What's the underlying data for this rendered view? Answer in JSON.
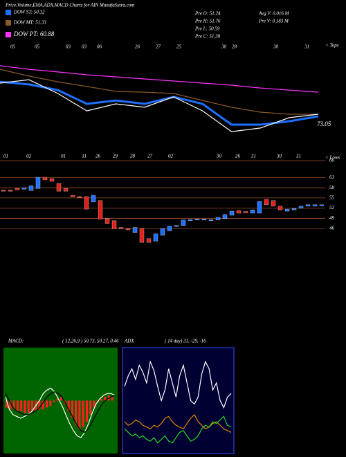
{
  "header": {
    "title": "Price,Volume,EMA,ADX,MACD Charts for AIN  MunafaSutra.com",
    "legend": [
      {
        "label": "DOW ST: 50.32",
        "color": "#1e6fff"
      },
      {
        "label": "DOW MT: 51.33",
        "color": "#8b5a2b"
      },
      {
        "label": "DOW PT: 60.88",
        "color": "#ff33ff"
      }
    ],
    "stats": [
      "Pre  O: 51.24",
      "Pre  H: 51.76",
      "Pre  L: 50.59",
      "Pre  C: 51.38"
    ],
    "volume": [
      "Avg V: 0.016  M",
      "Pre  V: 0.183 M"
    ],
    "tops": "< Tops",
    "lows": "< Lows",
    "macd_label": "MACD:",
    "macd_params": "( 12,26,9 ) 50.73, 50.27, 0.46",
    "adx_label": "ADX",
    "adx_params": "( 14  day) 31, -29, -16"
  },
  "chart_data": [
    {
      "type": "line",
      "ylim": [
        60,
        100
      ],
      "annotation": "73.05",
      "xlabels": [
        "05",
        "05",
        "03",
        "03",
        "06",
        "26",
        "27",
        "25",
        "30",
        "28",
        "30",
        "31"
      ],
      "series": [
        {
          "color": "#ff33ff",
          "values": [
            90.7,
            89.3,
            88.3,
            87.2,
            86.4,
            85.6,
            84.8,
            84.0,
            83.2,
            82.1,
            81.3,
            80.5
          ]
        },
        {
          "color": "#8b5a2b",
          "values": [
            89.3,
            86.7,
            84.5,
            82.7,
            80.8,
            80.5,
            80.0,
            77.3,
            74.7,
            72.8,
            72.0,
            72.0
          ]
        },
        {
          "color": "#1e6fff",
          "values": [
            84.5,
            83.5,
            81.3,
            76.0,
            77.3,
            76.0,
            78.7,
            76.0,
            68.0,
            68.0,
            69.3,
            71.2
          ]
        },
        {
          "color": "#ffffff",
          "values": [
            84.0,
            85.3,
            80.0,
            73.3,
            76.0,
            74.7,
            78.7,
            73.3,
            65.3,
            66.7,
            70.7,
            72.0
          ]
        }
      ]
    },
    {
      "type": "candlestick",
      "ylim": [
        40,
        66
      ],
      "yticks": [
        66,
        61,
        58,
        55,
        52,
        49,
        46
      ],
      "xlabels": [
        "01",
        "02",
        "01",
        "31",
        "26",
        "29",
        "28",
        "27",
        "02",
        "30",
        "26",
        "31",
        "30",
        "31"
      ],
      "up_color": "#1e6fff",
      "down_color": "#e0201b",
      "open": [
        57.4,
        57.4,
        57.8,
        57.6,
        57.2,
        57.8,
        61.1,
        60.7,
        59.3,
        57.8,
        55.8,
        55.4,
        55.4,
        53.8,
        54.2,
        48.9,
        48.3,
        46.3,
        46.0,
        44.8,
        46.0,
        43.0,
        42.3,
        44.0,
        45.3,
        46.6,
        46.9,
        48.3,
        48.5,
        48.6,
        48.3,
        48.5,
        48.9,
        49.9,
        51.3,
        51.0,
        50.5,
        50.5,
        54.6,
        54.2,
        52.6,
        51.1,
        51.5,
        52.0,
        52.6,
        52.6,
        52.8
      ],
      "close": [
        57.0,
        57.0,
        57.4,
        58.0,
        58.6,
        61.1,
        60.3,
        59.9,
        57.0,
        57.0,
        55.4,
        55.0,
        51.7,
        55.8,
        48.8,
        47.5,
        45.9,
        45.9,
        45.6,
        46.3,
        41.9,
        41.9,
        44.4,
        46.0,
        46.7,
        46.9,
        48.5,
        48.6,
        48.8,
        48.8,
        48.6,
        49.3,
        50.1,
        51.1,
        50.5,
        50.6,
        51.5,
        54.0,
        53.0,
        52.6,
        51.5,
        51.7,
        51.9,
        52.6,
        53.0,
        53.0,
        53.0
      ]
    },
    {
      "type": "macd",
      "ylim": [
        -3,
        3
      ],
      "bar_color": "#ff2020",
      "histogram": [
        -0.4,
        -0.5,
        -0.5,
        -0.6,
        -0.6,
        -0.7,
        -0.7,
        -0.6,
        -0.6,
        -0.5,
        -0.5,
        -0.4,
        -0.3,
        -0.1,
        0.1,
        0.2,
        -0.2,
        -0.6,
        -1.0,
        -1.4,
        -1.6,
        -1.5,
        -1.2,
        -0.8,
        -0.4,
        -0.1,
        0.1,
        0.2,
        0.3,
        0.2
      ],
      "series": [
        {
          "color": "#ffffff",
          "values": [
            0.2,
            -0.5,
            -0.8,
            -0.9,
            -1.0,
            -0.9,
            -0.8,
            -0.6,
            -0.3,
            0.0,
            0.4,
            0.6,
            0.7,
            0.5,
            0.1,
            -0.3,
            -0.8,
            -1.3,
            -1.7,
            -2.0,
            -2.1,
            -1.8,
            -1.3,
            -0.7,
            -0.2,
            0.1,
            0.3,
            0.4,
            0.4,
            0.3
          ]
        },
        {
          "color": "#000000",
          "values": [
            0.4,
            0.0,
            -0.4,
            -0.6,
            -0.7,
            -0.8,
            -0.8,
            -0.7,
            -0.6,
            -0.4,
            -0.1,
            0.2,
            0.4,
            0.5,
            0.4,
            0.2,
            -0.2,
            -0.6,
            -1.0,
            -1.4,
            -1.7,
            -1.8,
            -1.6,
            -1.2,
            -0.8,
            -0.4,
            -0.1,
            0.1,
            0.2,
            0.3
          ]
        }
      ]
    },
    {
      "type": "line",
      "ylim": [
        0,
        60
      ],
      "series": [
        {
          "color": "#ffffff",
          "values": [
            38,
            44,
            48,
            42,
            50,
            46,
            40,
            52,
            47,
            38,
            30,
            36,
            48,
            40,
            32,
            44,
            50,
            40,
            30,
            28,
            32,
            45,
            52,
            48,
            36,
            40,
            30,
            26,
            32,
            34
          ]
        },
        {
          "color": "#e08a00",
          "values": [
            18,
            16,
            17,
            19,
            18,
            16,
            15,
            14,
            16,
            15,
            17,
            20,
            21,
            18,
            16,
            15,
            14,
            17,
            20,
            22,
            18,
            16,
            14,
            15,
            17,
            18,
            16,
            14,
            13,
            12
          ]
        },
        {
          "color": "#22dd22",
          "values": [
            14,
            12,
            10,
            11,
            9,
            10,
            8,
            7,
            9,
            6,
            8,
            10,
            7,
            6,
            9,
            12,
            13,
            10,
            7,
            8,
            10,
            14,
            16,
            15,
            18,
            17,
            19,
            21,
            16,
            15
          ]
        }
      ]
    }
  ]
}
